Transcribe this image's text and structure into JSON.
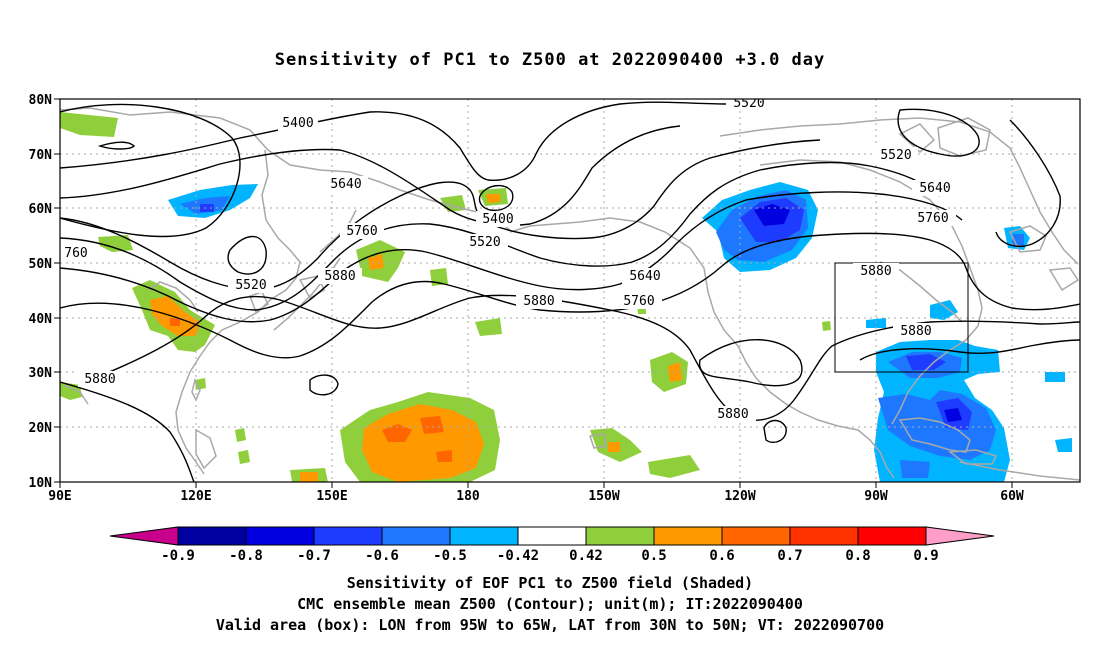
{
  "title": "Sensitivity of PC1 to Z500 at 2022090400 +3.0 day",
  "lat_labels": [
    "80N",
    "70N",
    "60N",
    "50N",
    "40N",
    "30N",
    "20N",
    "10N"
  ],
  "lon_labels": [
    "90E",
    "120E",
    "150E",
    "180",
    "150W",
    "120W",
    "90W",
    "60W"
  ],
  "contour_labels": [
    "5400",
    "5520",
    "5520",
    "5520",
    "5640",
    "5640",
    "5640",
    "5760",
    "5760",
    "5760",
    "760",
    "5880",
    "5880",
    "5880",
    "5880",
    "5880",
    "5880",
    "5400",
    "5520"
  ],
  "colorbar": {
    "labels": [
      "-0.9",
      "-0.8",
      "-0.7",
      "-0.6",
      "-0.5",
      "-0.42",
      "0.42",
      "0.5",
      "0.6",
      "0.7",
      "0.8",
      "0.9"
    ],
    "colors": [
      "#c8008c",
      "#0000a0",
      "#0000e0",
      "#1e3cff",
      "#1e78ff",
      "#00b4ff",
      "#ffffff",
      "#8fcf3c",
      "#ff9900",
      "#ff6600",
      "#ff3300",
      "#ff0000",
      "#ff9ec8"
    ]
  },
  "colors": {
    "contour": "#000000",
    "coast": "#aaaaaa",
    "grid": "#aaaaaa",
    "box": "#000000"
  },
  "captions": [
    "Sensitivity of EOF PC1 to Z500 field (Shaded)",
    "CMC ensemble mean Z500 (Contour); unit(m); IT:2022090400",
    "Valid area (box): LON from 95W to 65W, LAT from 30N to 50N; VT: 2022090700"
  ]
}
